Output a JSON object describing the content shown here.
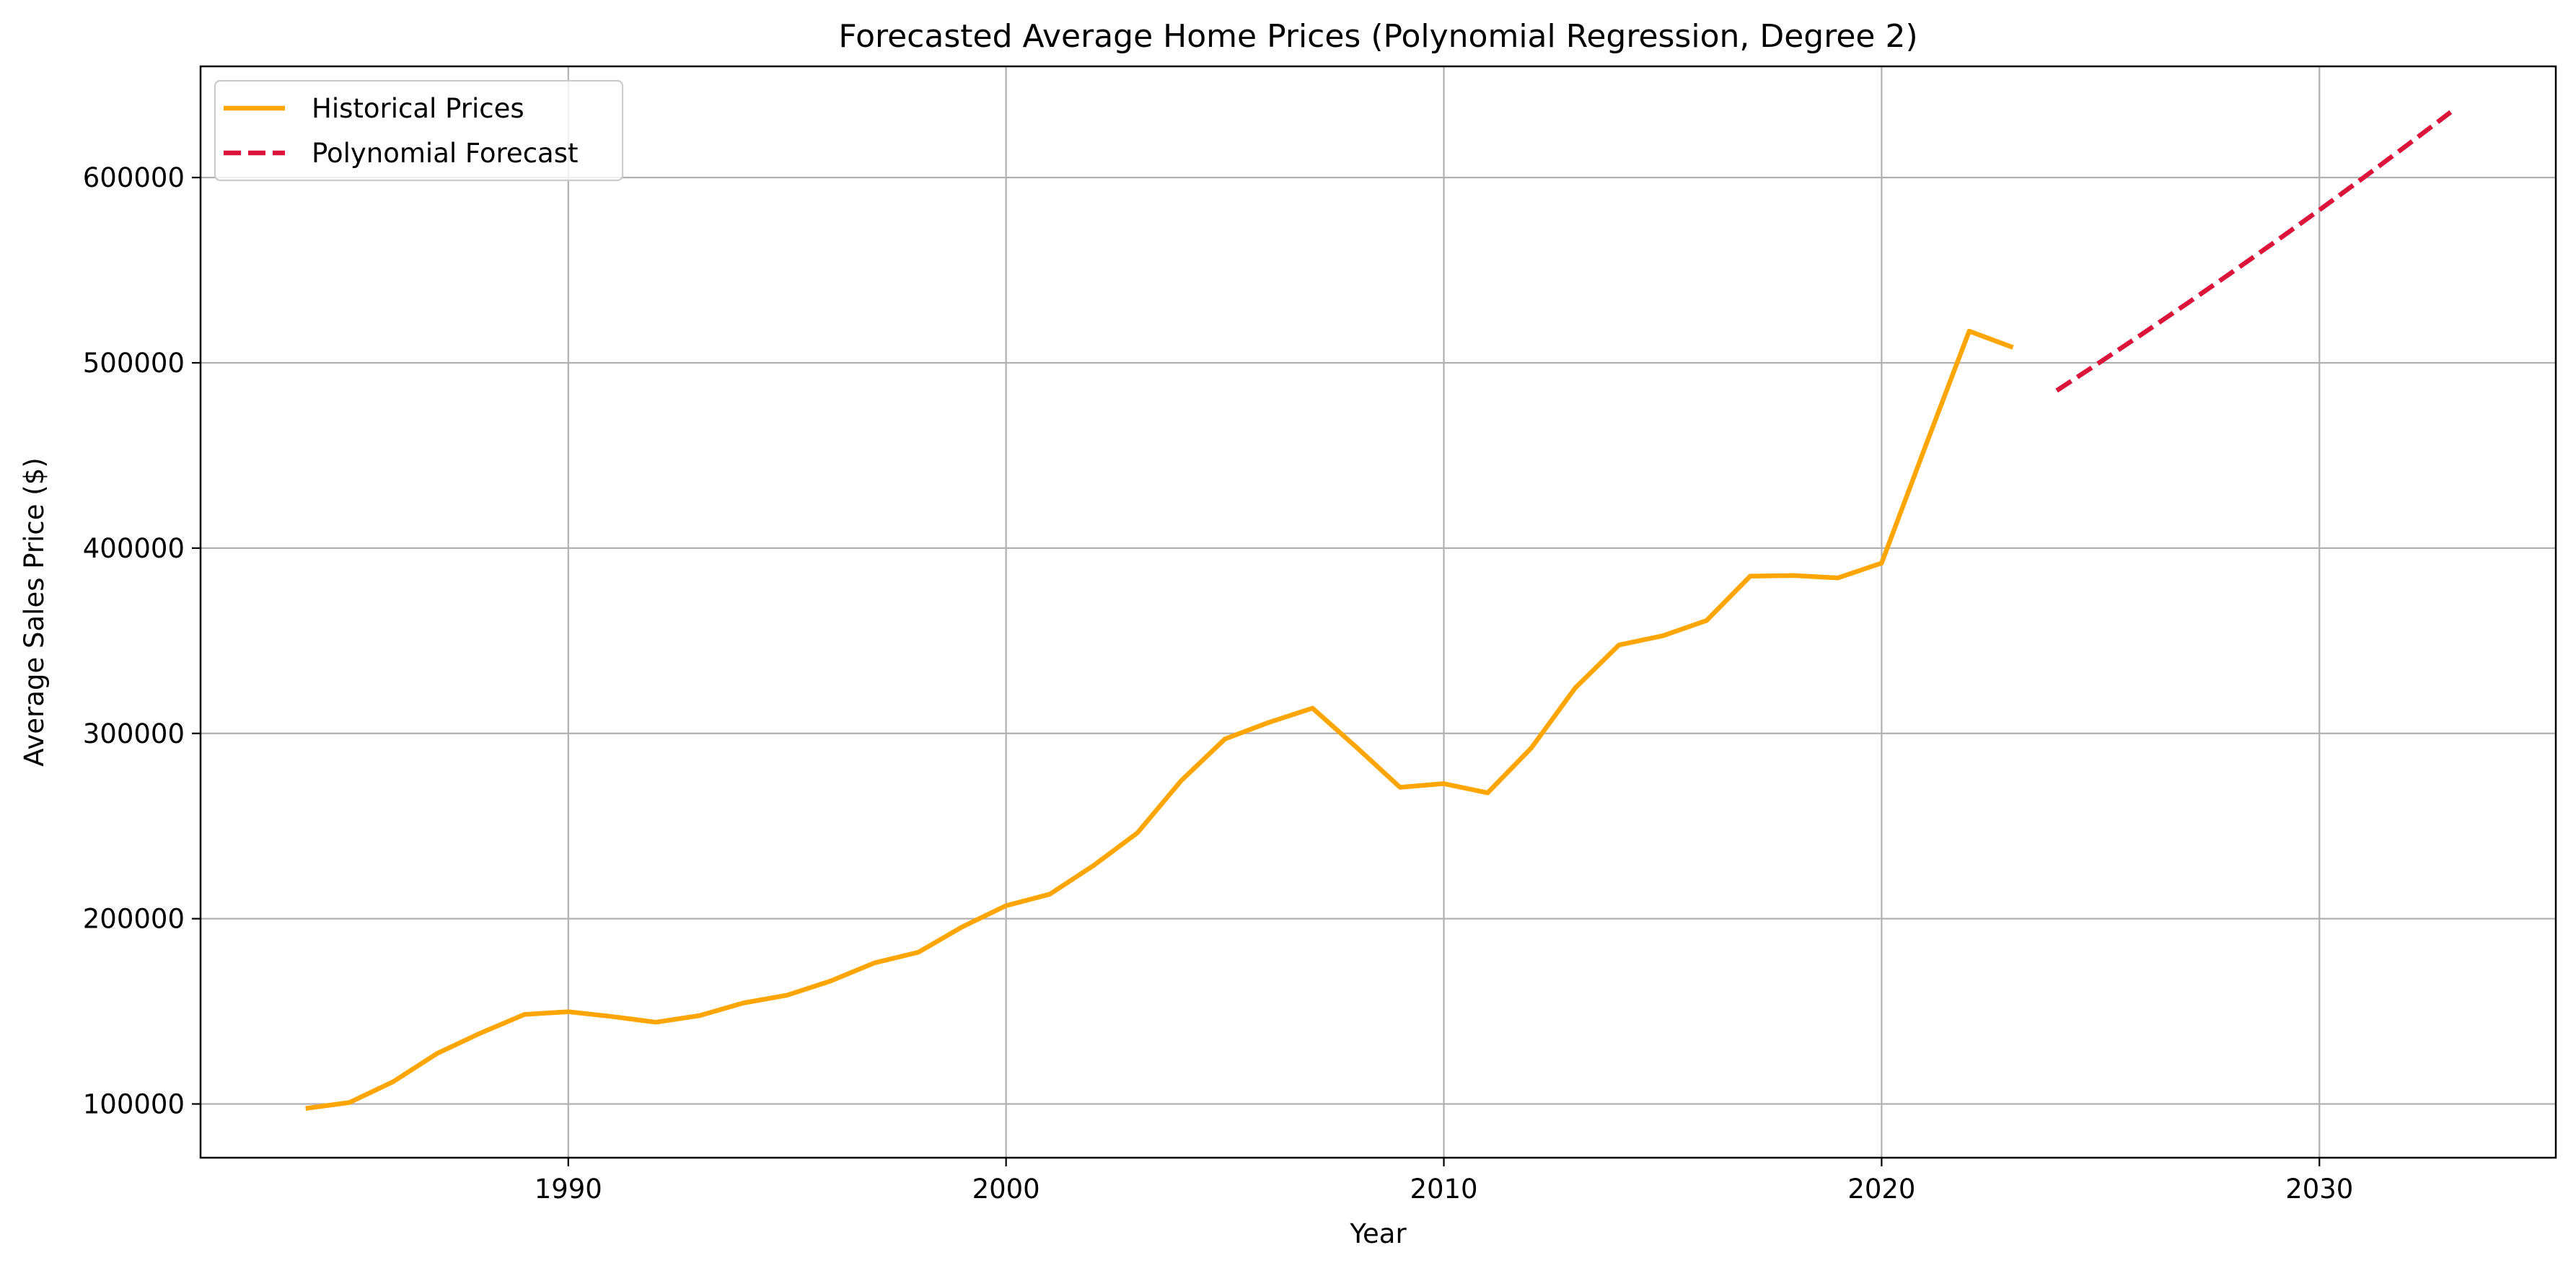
{
  "chart_data": {
    "type": "line",
    "title": "Forecasted Average Home Prices (Polynomial Regression, Degree 2)",
    "xlabel": "Year",
    "ylabel": "Average Sales Price ($)",
    "xlim": [
      1981.6,
      2035.4
    ],
    "ylim": [
      71000,
      660000
    ],
    "xticks": [
      1990,
      2000,
      2010,
      2020,
      2030
    ],
    "yticks": [
      100000,
      200000,
      300000,
      400000,
      500000,
      600000
    ],
    "xtick_labels": [
      "1990",
      "2000",
      "2010",
      "2020",
      "2030"
    ],
    "ytick_labels": [
      "100000",
      "200000",
      "300000",
      "400000",
      "500000",
      "600000"
    ],
    "grid": true,
    "legend_position": "top-left",
    "series": [
      {
        "name": "Historical Prices",
        "color": "#ffa500",
        "style": "solid",
        "x": [
          1984,
          1985,
          1986,
          1987,
          1988,
          1989,
          1990,
          1991,
          1992,
          1993,
          1994,
          1995,
          1996,
          1997,
          1998,
          1999,
          2000,
          2001,
          2002,
          2003,
          2004,
          2005,
          2006,
          2007,
          2008,
          2009,
          2010,
          2011,
          2012,
          2013,
          2014,
          2015,
          2016,
          2017,
          2018,
          2019,
          2020,
          2021,
          2022,
          2023
        ],
        "y": [
          97600,
          100800,
          112000,
          127200,
          138300,
          148300,
          149800,
          147200,
          144100,
          147700,
          154500,
          158700,
          166400,
          176200,
          181900,
          195600,
          207000,
          213200,
          228700,
          246300,
          274500,
          297000,
          305900,
          313600,
          292600,
          270900,
          272900,
          267900,
          292200,
          324500,
          347700,
          352700,
          360900,
          384900,
          385200,
          383900,
          391900,
          454900,
          517100,
          508300
        ]
      },
      {
        "name": "Polynomial Forecast",
        "color": "#dc143c",
        "style": "dashed",
        "x": [
          2024,
          2025,
          2026,
          2027,
          2028,
          2029,
          2030,
          2031,
          2032,
          2033
        ],
        "y": [
          485000,
          500500,
          516300,
          532400,
          548800,
          565500,
          582500,
          599800,
          617400,
          635300
        ]
      }
    ]
  }
}
